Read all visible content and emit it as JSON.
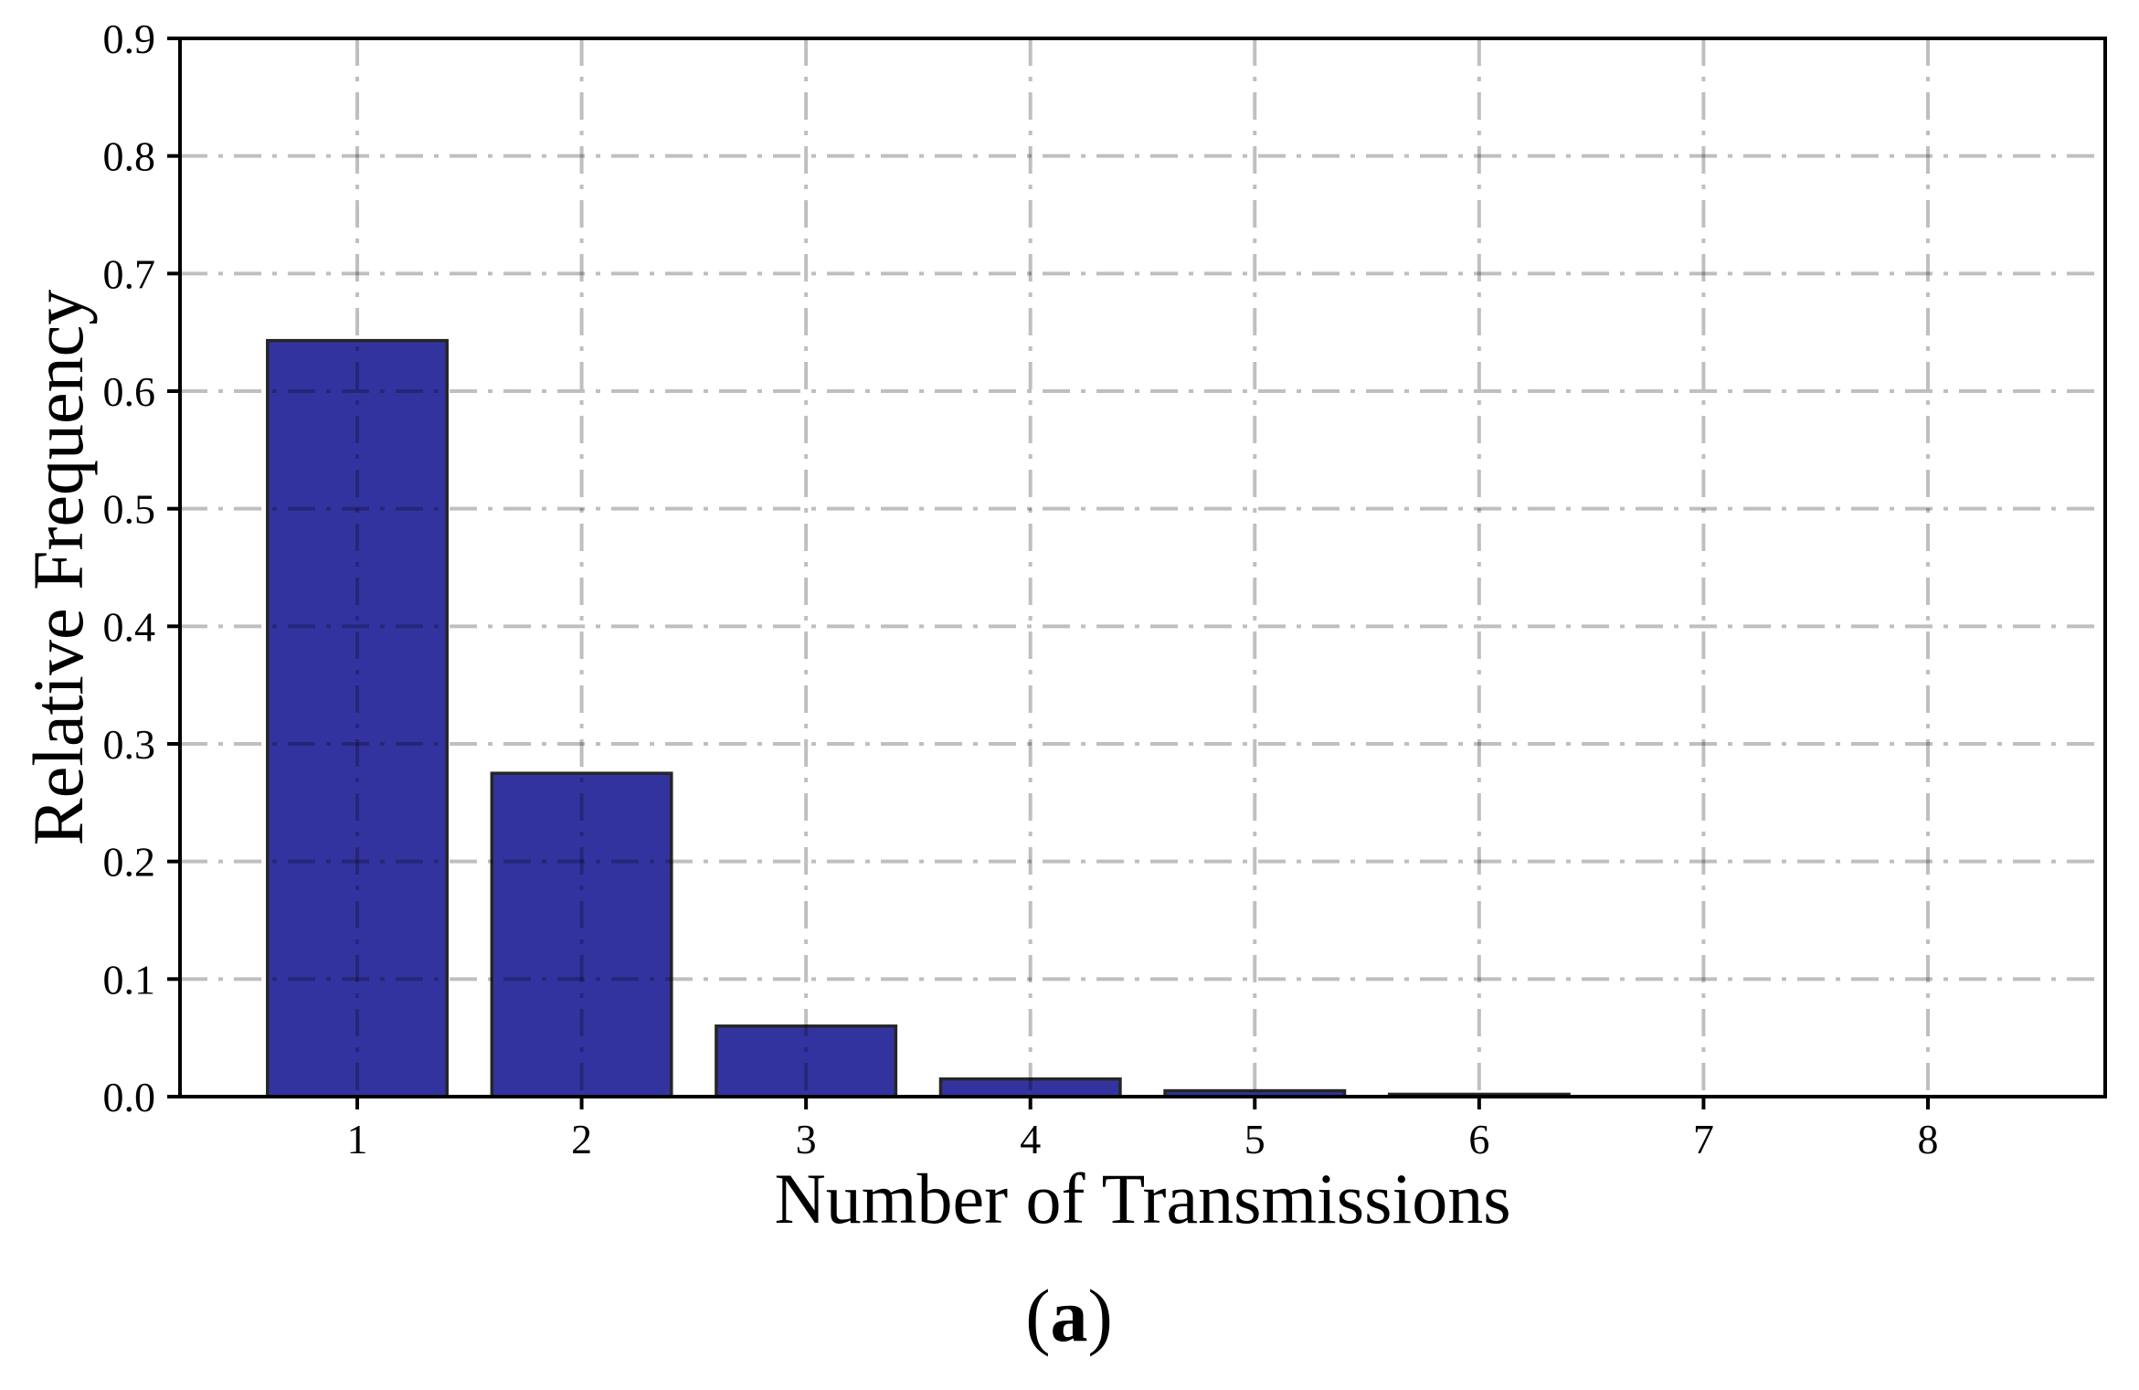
{
  "figure": {
    "background": "#ffffff",
    "caption": {
      "open": "(",
      "letter": "a",
      "close": ")"
    }
  },
  "chart_data": {
    "type": "bar",
    "title": "",
    "xlabel": "Number of Transmissions",
    "ylabel": "Relative Frequency",
    "categories": [
      1,
      2,
      3,
      4,
      5,
      6,
      7,
      8
    ],
    "xtick_labels": [
      "1",
      "2",
      "3",
      "4",
      "5",
      "6",
      "7",
      "8"
    ],
    "values": [
      0.643,
      0.275,
      0.06,
      0.015,
      0.005,
      0.002,
      0.0,
      0.0
    ],
    "bar_width": 0.8,
    "xlim": [
      0.21,
      8.79
    ],
    "ylim": [
      0.0,
      0.9
    ],
    "yticks": [
      0.0,
      0.1,
      0.2,
      0.3,
      0.4,
      0.5,
      0.6,
      0.7,
      0.8,
      0.9
    ],
    "ytick_labels": [
      "0.0",
      "0.1",
      "0.2",
      "0.3",
      "0.4",
      "0.5",
      "0.6",
      "0.7",
      "0.8",
      "0.9"
    ],
    "grid": {
      "visible": true,
      "style": "dash-dot",
      "axis": "both",
      "position": "over-bars"
    },
    "legend": null,
    "colors": {
      "bar_fill": "#3333a0",
      "bar_edge": "#262626",
      "grid": "rgba(0,0,0,0.25)",
      "axis": "#000000",
      "background": "#ffffff"
    }
  }
}
